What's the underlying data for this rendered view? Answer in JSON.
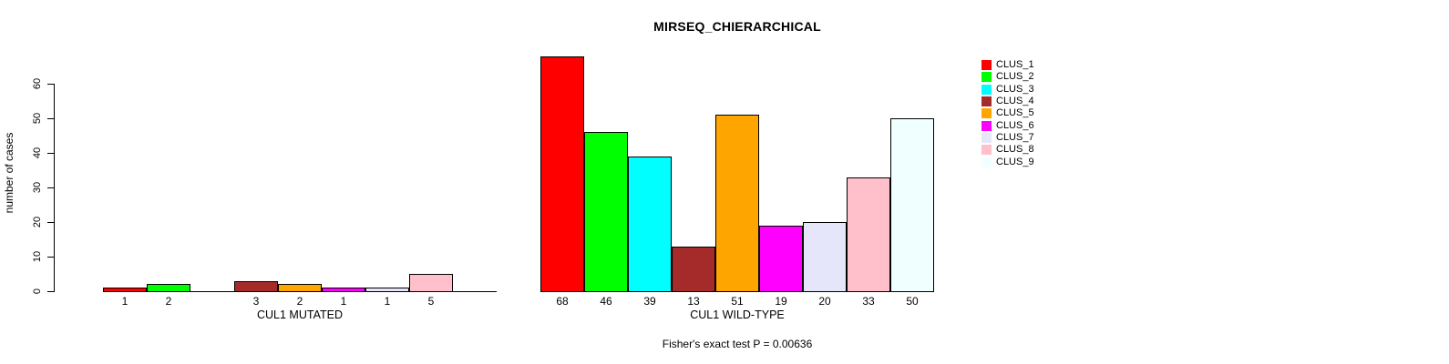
{
  "chart_data": {
    "type": "bar",
    "title": "MIRSEQ_CHIERARCHICAL",
    "ylabel": "number of cases",
    "ylim": [
      0,
      60
    ],
    "yticks": [
      0,
      10,
      20,
      30,
      40,
      50,
      60
    ],
    "grid": false,
    "legend_position": "right",
    "legend": [
      "CLUS_1",
      "CLUS_2",
      "CLUS_3",
      "CLUS_4",
      "CLUS_5",
      "CLUS_6",
      "CLUS_7",
      "CLUS_8",
      "CLUS_9"
    ],
    "colors": [
      "#ff0000",
      "#00ff00",
      "#00ffff",
      "#a52a2a",
      "#ffa500",
      "#ff00ff",
      "#e6e6fa",
      "#ffc0cb",
      "#f0ffff"
    ],
    "panels": [
      {
        "xlabel": "CUL1 MUTATED",
        "categories": [
          "CLUS_1",
          "CLUS_2",
          "CLUS_3",
          "CLUS_4",
          "CLUS_5",
          "CLUS_6",
          "CLUS_7",
          "CLUS_8",
          "CLUS_9"
        ],
        "values": [
          1,
          2,
          0,
          3,
          2,
          1,
          1,
          5,
          0
        ],
        "bar_labels": [
          "1",
          "2",
          "",
          "3",
          "2",
          "1",
          "1",
          "5",
          ""
        ]
      },
      {
        "xlabel": "CUL1 WILD-TYPE",
        "categories": [
          "CLUS_1",
          "CLUS_2",
          "CLUS_3",
          "CLUS_4",
          "CLUS_5",
          "CLUS_6",
          "CLUS_7",
          "CLUS_8",
          "CLUS_9"
        ],
        "values": [
          68,
          46,
          39,
          13,
          51,
          19,
          20,
          33,
          50
        ],
        "bar_labels": [
          "68",
          "46",
          "39",
          "13",
          "51",
          "19",
          "20",
          "33",
          "50"
        ]
      }
    ],
    "annotation": "Fisher's exact test P = 0.00636"
  }
}
